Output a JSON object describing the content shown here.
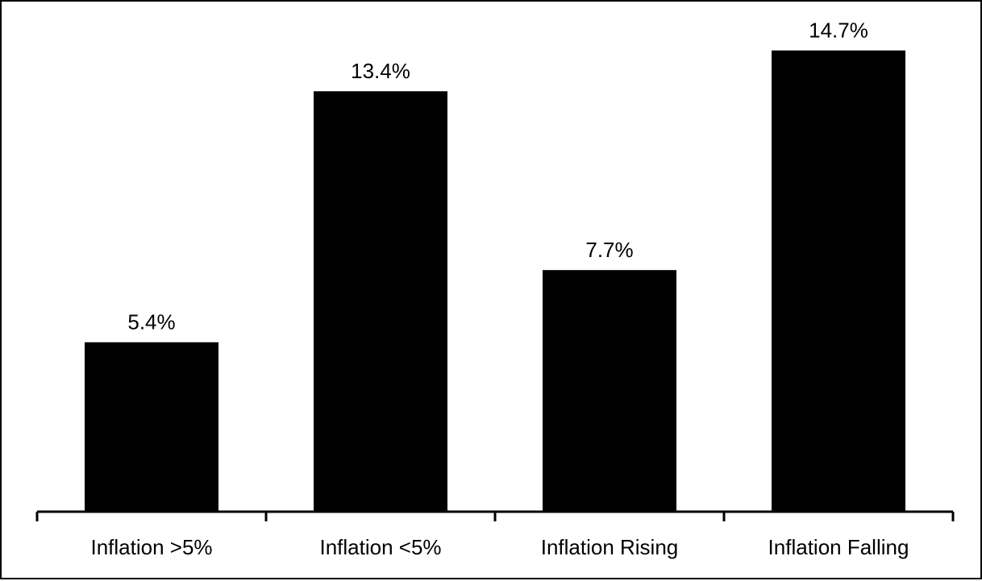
{
  "chart_data": {
    "type": "bar",
    "categories": [
      "Inflation >5%",
      "Inflation <5%",
      "Inflation Rising",
      "Inflation Falling"
    ],
    "values": [
      5.4,
      13.4,
      7.7,
      14.7
    ],
    "value_labels": [
      "5.4%",
      "13.4%",
      "7.7%",
      "14.7%"
    ],
    "title": "",
    "xlabel": "",
    "ylabel": "",
    "ylim": [
      0,
      16
    ],
    "grid": false,
    "legend": "none",
    "bar_color": "#000000",
    "axis_color": "#000000",
    "text_color": "#000000"
  }
}
